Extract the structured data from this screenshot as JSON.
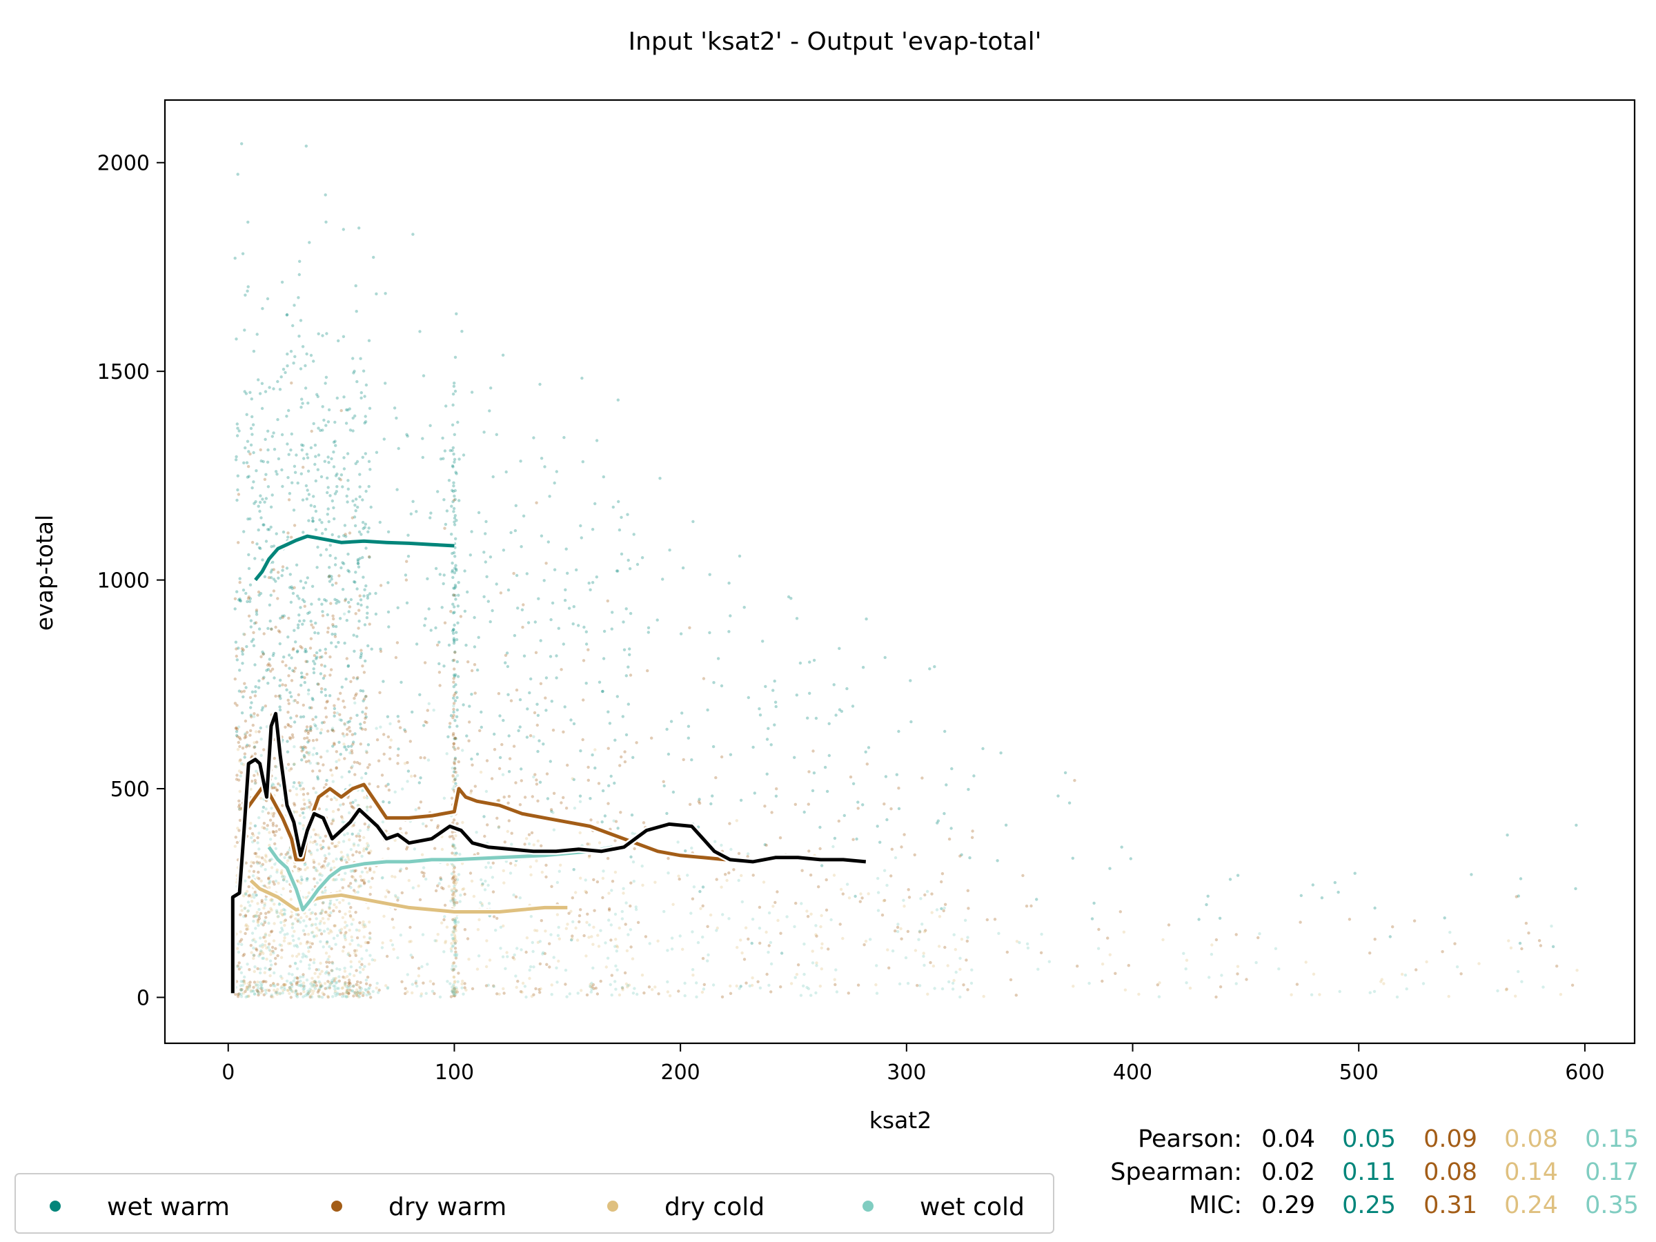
{
  "chart_data": {
    "type": "scatter",
    "title": "Input 'ksat2' - Output 'evap-total'",
    "xlabel": "ksat2",
    "ylabel": "evap-total",
    "xlim": [
      -28,
      622
    ],
    "ylim": [
      -110,
      2150
    ],
    "x_ticks": [
      0,
      100,
      200,
      300,
      400,
      500,
      600
    ],
    "x_tick_labels": [
      "0",
      "100",
      "200",
      "300",
      "400",
      "500",
      "600"
    ],
    "y_ticks": [
      0,
      500,
      1000,
      1500,
      2000
    ],
    "y_tick_labels": [
      "0",
      "500",
      "1000",
      "1500",
      "2000"
    ],
    "grid": false,
    "legend_position": "bottom-left",
    "series": [
      {
        "name": "wet warm",
        "color": "#01857a",
        "trend": [
          [
            12,
            1000
          ],
          [
            15,
            1020
          ],
          [
            18,
            1050
          ],
          [
            22,
            1075
          ],
          [
            26,
            1085
          ],
          [
            30,
            1095
          ],
          [
            35,
            1105
          ],
          [
            40,
            1100
          ],
          [
            45,
            1095
          ],
          [
            50,
            1090
          ],
          [
            60,
            1093
          ],
          [
            70,
            1090
          ],
          [
            80,
            1088
          ],
          [
            90,
            1085
          ],
          [
            100,
            1082
          ]
        ]
      },
      {
        "name": "dry warm",
        "color": "#a35d17",
        "trend": [
          [
            8,
            450
          ],
          [
            12,
            480
          ],
          [
            16,
            510
          ],
          [
            20,
            470
          ],
          [
            24,
            430
          ],
          [
            28,
            380
          ],
          [
            30,
            330
          ],
          [
            33,
            330
          ],
          [
            36,
            420
          ],
          [
            40,
            480
          ],
          [
            45,
            500
          ],
          [
            50,
            480
          ],
          [
            55,
            500
          ],
          [
            60,
            510
          ],
          [
            65,
            470
          ],
          [
            70,
            430
          ],
          [
            80,
            430
          ],
          [
            90,
            435
          ],
          [
            100,
            445
          ],
          [
            102,
            500
          ],
          [
            105,
            480
          ],
          [
            110,
            470
          ],
          [
            120,
            460
          ],
          [
            130,
            440
          ],
          [
            140,
            430
          ],
          [
            150,
            420
          ],
          [
            160,
            410
          ],
          [
            170,
            390
          ],
          [
            180,
            370
          ],
          [
            190,
            350
          ],
          [
            200,
            340
          ],
          [
            210,
            335
          ],
          [
            220,
            330
          ],
          [
            235,
            325
          ]
        ]
      },
      {
        "name": "dry cold",
        "color": "#dfc07f",
        "trend": [
          [
            10,
            280
          ],
          [
            14,
            260
          ],
          [
            18,
            250
          ],
          [
            22,
            240
          ],
          [
            26,
            225
          ],
          [
            30,
            210
          ],
          [
            34,
            215
          ],
          [
            38,
            235
          ],
          [
            42,
            240
          ],
          [
            50,
            245
          ],
          [
            60,
            235
          ],
          [
            70,
            225
          ],
          [
            80,
            215
          ],
          [
            90,
            210
          ],
          [
            100,
            205
          ],
          [
            110,
            205
          ],
          [
            120,
            205
          ],
          [
            130,
            210
          ],
          [
            140,
            215
          ],
          [
            150,
            215
          ]
        ]
      },
      {
        "name": "wet cold",
        "color": "#80cdc1",
        "trend": [
          [
            18,
            360
          ],
          [
            22,
            330
          ],
          [
            26,
            310
          ],
          [
            30,
            260
          ],
          [
            33,
            210
          ],
          [
            36,
            230
          ],
          [
            40,
            260
          ],
          [
            45,
            290
          ],
          [
            50,
            310
          ],
          [
            60,
            320
          ],
          [
            70,
            325
          ],
          [
            80,
            325
          ],
          [
            90,
            330
          ],
          [
            100,
            330
          ],
          [
            120,
            335
          ],
          [
            140,
            340
          ],
          [
            160,
            350
          ],
          [
            170,
            360
          ]
        ]
      }
    ],
    "overall_trend": {
      "color": "#000000",
      "points": [
        [
          2,
          10
        ],
        [
          2,
          240
        ],
        [
          5,
          250
        ],
        [
          7,
          400
        ],
        [
          9,
          560
        ],
        [
          12,
          570
        ],
        [
          14,
          560
        ],
        [
          17,
          480
        ],
        [
          19,
          650
        ],
        [
          21,
          680
        ],
        [
          23,
          580
        ],
        [
          26,
          460
        ],
        [
          29,
          420
        ],
        [
          32,
          340
        ],
        [
          35,
          400
        ],
        [
          38,
          440
        ],
        [
          42,
          430
        ],
        [
          46,
          380
        ],
        [
          50,
          400
        ],
        [
          54,
          420
        ],
        [
          58,
          450
        ],
        [
          62,
          430
        ],
        [
          66,
          410
        ],
        [
          70,
          380
        ],
        [
          75,
          390
        ],
        [
          80,
          370
        ],
        [
          90,
          380
        ],
        [
          98,
          410
        ],
        [
          103,
          400
        ],
        [
          108,
          370
        ],
        [
          115,
          360
        ],
        [
          125,
          355
        ],
        [
          135,
          350
        ],
        [
          145,
          350
        ],
        [
          155,
          355
        ],
        [
          165,
          350
        ],
        [
          175,
          360
        ],
        [
          185,
          400
        ],
        [
          195,
          415
        ],
        [
          205,
          410
        ],
        [
          210,
          380
        ],
        [
          215,
          350
        ],
        [
          222,
          330
        ],
        [
          232,
          325
        ],
        [
          242,
          335
        ],
        [
          252,
          335
        ],
        [
          262,
          330
        ],
        [
          272,
          330
        ],
        [
          282,
          325
        ]
      ]
    },
    "stats": {
      "Pearson": [
        "0.04",
        "0.05",
        "0.09",
        "0.08",
        "0.15"
      ],
      "Spearman": [
        "0.02",
        "0.11",
        "0.08",
        "0.14",
        "0.17"
      ],
      "MIC": [
        "0.29",
        "0.25",
        "0.31",
        "0.24",
        "0.35"
      ]
    },
    "stat_colors": [
      "#000000",
      "#01857a",
      "#a35d17",
      "#dfc07f",
      "#80cdc1"
    ]
  }
}
